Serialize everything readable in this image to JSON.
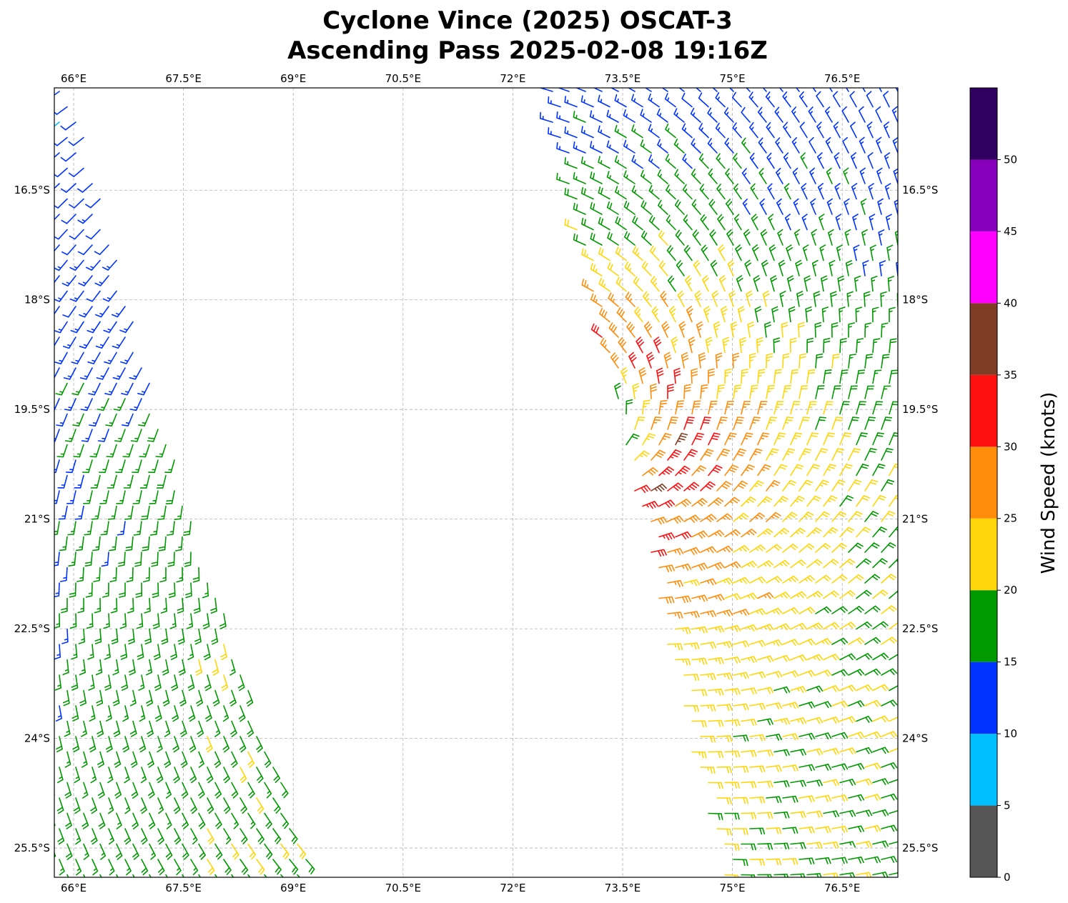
{
  "chart_data": {
    "type": "wind_barbs",
    "title": "Cyclone Vince (2025) OSCAT-3",
    "subtitle": "Ascending Pass 2025-02-08 19:16Z",
    "xlabel": "",
    "ylabel": "",
    "xlim": [
      65.736,
      77.26
    ],
    "ylim": [
      -25.9,
      -15.1
    ],
    "grid": true,
    "x_ticks": [
      66,
      67.5,
      69,
      70.5,
      72,
      73.5,
      75,
      76.5
    ],
    "x_tick_labels": [
      "66°E",
      "67.5°E",
      "69°E",
      "70.5°E",
      "72°E",
      "73.5°E",
      "75°E",
      "76.5°E"
    ],
    "y_ticks": [
      -16.5,
      -18,
      -19.5,
      -21,
      -22.5,
      -24,
      -25.5
    ],
    "y_tick_labels": [
      "16.5°S",
      "18°S",
      "19.5°S",
      "21°S",
      "22.5°S",
      "24°S",
      "25.5°S"
    ],
    "colorbar": {
      "label": "Wind Speed (knots)",
      "bounds": [
        0,
        5,
        10,
        15,
        20,
        25,
        30,
        35,
        40,
        45,
        50,
        55
      ],
      "tick_labels": [
        "0",
        "5",
        "10",
        "15",
        "20",
        "25",
        "30",
        "35",
        "40",
        "45",
        "50"
      ],
      "colors": [
        "#555555",
        "#00bfff",
        "#0033ff",
        "#009900",
        "#ffd60a",
        "#ff8c0a",
        "#ff1010",
        "#803d26",
        "#ff00ff",
        "#8800bb",
        "#2f0060"
      ]
    },
    "swaths": [
      {
        "name": "west",
        "edge": "east",
        "boundary": [
          [
            65.97,
            -15.1
          ],
          [
            67.53,
            -20.74
          ],
          [
            69.29,
            -25.9
          ]
        ]
      },
      {
        "name": "east",
        "edge": "west",
        "boundary": [
          [
            72.42,
            -15.1
          ],
          [
            73.3,
            -18.98
          ],
          [
            74.08,
            -22.7
          ],
          [
            74.87,
            -25.9
          ]
        ]
      }
    ],
    "wind_field": {
      "center_lon": 72.8,
      "center_lat": -19.8,
      "max_wind_kt": 33,
      "radius_max_wind_deg": 1.3,
      "rotation": "clockwise",
      "inflow_deg": 20
    }
  }
}
